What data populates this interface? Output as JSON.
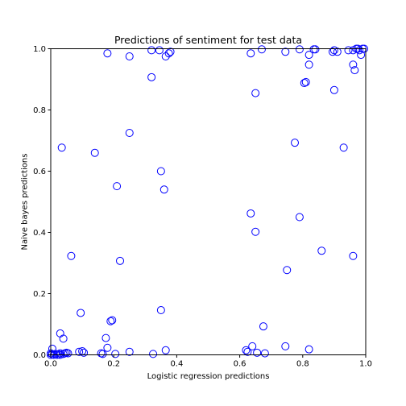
{
  "chart_data": {
    "type": "scatter",
    "title": "Predictions of sentiment for test data",
    "xlabel": "Logistic regression predictions",
    "ylabel": "Naive bayes predictions",
    "xlim": [
      0,
      1
    ],
    "ylim": [
      0,
      1
    ],
    "xticks": [
      "0.0",
      "0.2",
      "0.4",
      "0.6",
      "0.8",
      "1.0"
    ],
    "yticks": [
      "0.0",
      "0.2",
      "0.4",
      "0.6",
      "0.8",
      "1.0"
    ],
    "grid": false,
    "marker": "open-circle",
    "marker_color": "#0000ff",
    "points": [
      [
        0.18,
        0.985
      ],
      [
        0.25,
        0.975
      ],
      [
        0.32,
        0.995
      ],
      [
        0.345,
        0.995
      ],
      [
        0.365,
        0.975
      ],
      [
        0.375,
        0.985
      ],
      [
        0.38,
        0.99
      ],
      [
        0.635,
        0.985
      ],
      [
        0.67,
        0.998
      ],
      [
        0.745,
        0.99
      ],
      [
        0.79,
        0.998
      ],
      [
        0.82,
        0.98
      ],
      [
        0.835,
        0.998
      ],
      [
        0.84,
        0.998
      ],
      [
        0.895,
        0.99
      ],
      [
        0.9,
        0.995
      ],
      [
        0.91,
        0.99
      ],
      [
        0.945,
        0.995
      ],
      [
        0.96,
        0.995
      ],
      [
        0.97,
        1.0
      ],
      [
        0.975,
        1.0
      ],
      [
        0.98,
        0.995
      ],
      [
        0.985,
        0.98
      ],
      [
        0.99,
        1.0
      ],
      [
        0.995,
        1.0
      ],
      [
        0.96,
        0.948
      ],
      [
        0.965,
        0.93
      ],
      [
        0.82,
        0.948
      ],
      [
        0.805,
        0.888
      ],
      [
        0.81,
        0.891
      ],
      [
        0.32,
        0.907
      ],
      [
        0.9,
        0.865
      ],
      [
        0.65,
        0.855
      ],
      [
        0.25,
        0.725
      ],
      [
        0.775,
        0.693
      ],
      [
        0.035,
        0.677
      ],
      [
        0.93,
        0.677
      ],
      [
        0.14,
        0.66
      ],
      [
        0.35,
        0.6
      ],
      [
        0.21,
        0.551
      ],
      [
        0.36,
        0.54
      ],
      [
        0.635,
        0.462
      ],
      [
        0.79,
        0.45
      ],
      [
        0.65,
        0.402
      ],
      [
        0.86,
        0.34
      ],
      [
        0.065,
        0.323
      ],
      [
        0.96,
        0.323
      ],
      [
        0.22,
        0.307
      ],
      [
        0.75,
        0.277
      ],
      [
        0.095,
        0.137
      ],
      [
        0.35,
        0.146
      ],
      [
        0.19,
        0.11
      ],
      [
        0.195,
        0.113
      ],
      [
        0.675,
        0.093
      ],
      [
        0.03,
        0.07
      ],
      [
        0.04,
        0.053
      ],
      [
        0.175,
        0.055
      ],
      [
        0.745,
        0.028
      ],
      [
        0.64,
        0.028
      ],
      [
        0.18,
        0.023
      ],
      [
        0.005,
        0.02
      ],
      [
        0.82,
        0.018
      ],
      [
        0.365,
        0.015
      ],
      [
        0.62,
        0.015
      ],
      [
        0.625,
        0.01
      ],
      [
        0.09,
        0.01
      ],
      [
        0.1,
        0.012
      ],
      [
        0.105,
        0.007
      ],
      [
        0.25,
        0.01
      ],
      [
        0.655,
        0.007
      ],
      [
        0.68,
        0.005
      ],
      [
        0.16,
        0.005
      ],
      [
        0.165,
        0.003
      ],
      [
        0.205,
        0.003
      ],
      [
        0.325,
        0.003
      ],
      [
        0.045,
        0.005
      ],
      [
        0.05,
        0.007
      ],
      [
        0.0,
        0.0
      ],
      [
        0.005,
        0.002
      ],
      [
        0.01,
        0.0
      ],
      [
        0.015,
        0.003
      ],
      [
        0.02,
        0.0
      ],
      [
        0.025,
        0.002
      ],
      [
        0.03,
        0.0
      ],
      [
        0.04,
        0.003
      ],
      [
        0.0,
        0.005
      ],
      [
        0.055,
        0.005
      ],
      [
        0.03,
        0.005
      ]
    ]
  }
}
